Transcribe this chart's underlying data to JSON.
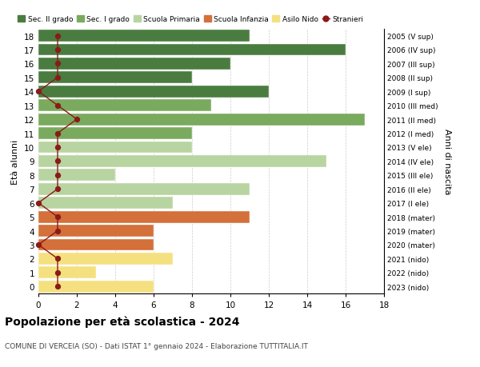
{
  "ages": [
    18,
    17,
    16,
    15,
    14,
    13,
    12,
    11,
    10,
    9,
    8,
    7,
    6,
    5,
    4,
    3,
    2,
    1,
    0
  ],
  "years": [
    "2005 (V sup)",
    "2006 (IV sup)",
    "2007 (III sup)",
    "2008 (II sup)",
    "2009 (I sup)",
    "2010 (III med)",
    "2011 (II med)",
    "2012 (I med)",
    "2013 (V ele)",
    "2014 (IV ele)",
    "2015 (III ele)",
    "2016 (II ele)",
    "2017 (I ele)",
    "2018 (mater)",
    "2019 (mater)",
    "2020 (mater)",
    "2021 (nido)",
    "2022 (nido)",
    "2023 (nido)"
  ],
  "values": [
    11,
    16,
    10,
    8,
    12,
    9,
    17,
    8,
    8,
    15,
    4,
    11,
    7,
    11,
    6,
    6,
    7,
    3,
    6
  ],
  "stranieri_x": [
    1,
    1,
    1,
    1,
    0,
    1,
    2,
    1,
    1,
    1,
    1,
    1,
    0,
    1,
    1,
    0,
    1,
    1,
    1
  ],
  "categories": [
    "Sec. II grado",
    "Sec. I grado",
    "Scuola Primaria",
    "Scuola Infanzia",
    "Asilo Nido"
  ],
  "bar_colors": {
    "Sec. II grado": "#4a7c40",
    "Sec. I grado": "#7aaa5e",
    "Scuola Primaria": "#b8d4a0",
    "Scuola Infanzia": "#d4703a",
    "Asilo Nido": "#f5e080"
  },
  "age_category": {
    "18": "Sec. II grado",
    "17": "Sec. II grado",
    "16": "Sec. II grado",
    "15": "Sec. II grado",
    "14": "Sec. II grado",
    "13": "Sec. I grado",
    "12": "Sec. I grado",
    "11": "Sec. I grado",
    "10": "Scuola Primaria",
    "9": "Scuola Primaria",
    "8": "Scuola Primaria",
    "7": "Scuola Primaria",
    "6": "Scuola Primaria",
    "5": "Scuola Infanzia",
    "4": "Scuola Infanzia",
    "3": "Scuola Infanzia",
    "2": "Asilo Nido",
    "1": "Asilo Nido",
    "0": "Asilo Nido"
  },
  "stranieri_color": "#8b1a1a",
  "title_bold": "Popolazione per età scolastica - 2024",
  "subtitle": "COMUNE DI VERCEIA (SO) - Dati ISTAT 1° gennaio 2024 - Elaborazione TUTTITALIA.IT",
  "xlabel": "Età alunni",
  "ylabel_right": "Anni di nascita",
  "bg_color": "#ffffff",
  "grid_color": "#cccccc"
}
